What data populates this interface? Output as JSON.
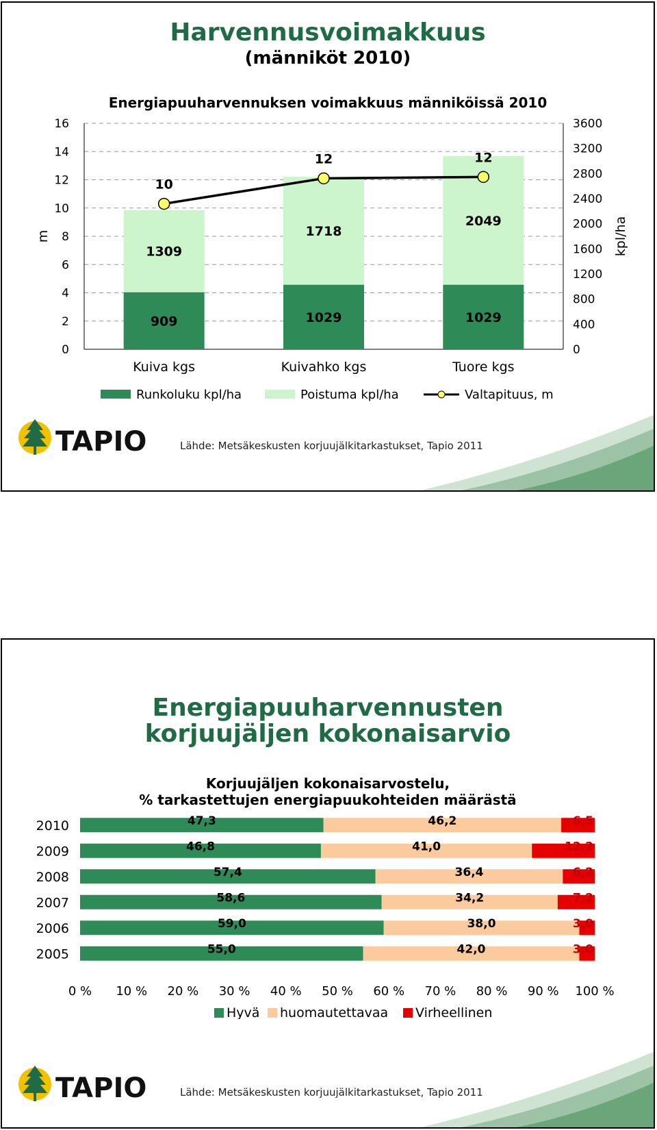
{
  "slide1": {
    "title": "Harvennusvoimakkuus",
    "subtitle": "(männiköt 2010)",
    "source": "Lähde: Metsäkeskusten korjuujälkitarkastukset, Tapio 2011",
    "logo_text": "TAPIO",
    "chart_data": {
      "type": "bar",
      "stacked": true,
      "title": "Energiapuuharvennuksen voimakkuus männiköissä 2010",
      "categories": [
        "Kuiva kgs",
        "Kuivahko kgs",
        "Tuore kgs"
      ],
      "series": [
        {
          "name": "Runkoluku kpl/ha",
          "axis": "right",
          "color": "#2e8b57",
          "values": [
            909,
            1029,
            1029
          ]
        },
        {
          "name": "Poistuma kpl/ha",
          "axis": "right",
          "color": "#ccf5cc",
          "values": [
            1309,
            1718,
            2049
          ]
        },
        {
          "name": "Valtapituus, m",
          "axis": "left",
          "type": "line",
          "color": "#000000",
          "marker_color": "#ffff66",
          "values": [
            10,
            12,
            12
          ],
          "plot_values": [
            10.3,
            12.1,
            12.2
          ]
        }
      ],
      "ylabel": "m",
      "y2label": "kpl/ha",
      "ylim": [
        0,
        16
      ],
      "y2lim": [
        0,
        3600
      ],
      "yticks": [
        "0",
        "2",
        "4",
        "6",
        "8",
        "10",
        "12",
        "14",
        "16"
      ],
      "y2ticks": [
        "0",
        "400",
        "800",
        "1200",
        "1600",
        "2000",
        "2400",
        "2800",
        "3200",
        "3600"
      ],
      "grid": true,
      "legend_position": "bottom"
    }
  },
  "slide2": {
    "title_line1": "Energiapuuharvennusten",
    "title_line2": "korjuujäljen kokonaisarvio",
    "source": "Lähde: Metsäkeskusten korjuujälkitarkastukset, Tapio 2011",
    "logo_text": "TAPIO",
    "chart_data": {
      "type": "bar",
      "orientation": "horizontal",
      "stacked": true,
      "percent": true,
      "title_line1": "Korjuujäljen kokonaisarvostelu,",
      "title_line2": "% tarkastettujen energiapuukohteiden määrästä",
      "categories": [
        "2010",
        "2009",
        "2008",
        "2007",
        "2006",
        "2005"
      ],
      "series": [
        {
          "name": "Hyvä",
          "color": "#2e8b57",
          "label_color": "#000000",
          "values": [
            47.3,
            46.8,
            57.4,
            58.6,
            59.0,
            55.0
          ],
          "labels": [
            "47,3",
            "46,8",
            "57,4",
            "58,6",
            "59,0",
            "55,0"
          ]
        },
        {
          "name": "huomautettavaa",
          "color": "#fbcb9e",
          "label_color": "#000000",
          "values": [
            46.2,
            41.0,
            36.4,
            34.2,
            38.0,
            42.0
          ],
          "labels": [
            "46,2",
            "41,0",
            "36,4",
            "34,2",
            "38,0",
            "42,0"
          ]
        },
        {
          "name": "Virheellinen",
          "color": "#e60000",
          "label_color": "#c00000",
          "values": [
            6.5,
            12.2,
            6.2,
            7.2,
            3.0,
            3.0
          ],
          "labels": [
            "6,5",
            "12,2",
            "6,2",
            "7,2",
            "3,0",
            "3,0"
          ]
        }
      ],
      "xlim": [
        0,
        100
      ],
      "xticks": [
        "0 %",
        "10 %",
        "20 %",
        "30 %",
        "40 %",
        "50 %",
        "60 %",
        "70 %",
        "80 %",
        "90 %",
        "100 %"
      ],
      "legend_position": "bottom"
    }
  }
}
